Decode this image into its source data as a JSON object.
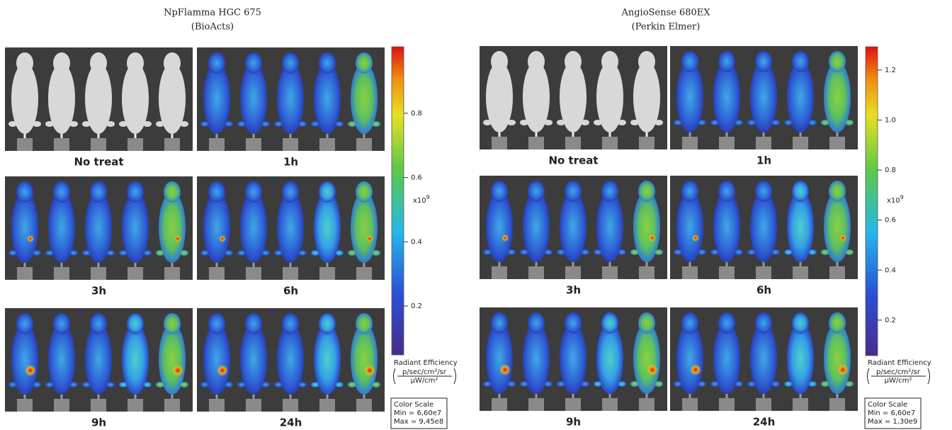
{
  "panels": [
    {
      "title": "NpFlamma HGC 675",
      "subtitle": "(BioActs)",
      "tiles": [
        "No treat",
        "1h",
        "3h",
        "6h",
        "9h",
        "24h"
      ],
      "colorbar": {
        "lim": [
          0.048,
          1.007
        ],
        "ticks": [
          0.2,
          0.4,
          0.6,
          0.8
        ],
        "multiplier": "x10",
        "exponent": "9",
        "label": "Radiant Efficiency",
        "unit_numerator": "p/sec/cm²/sr",
        "unit_denominator": "µW/cm²",
        "scale_title": "Color Scale",
        "min": "Min = 6,60e7",
        "max": "Max = 9,45e8"
      }
    },
    {
      "title": "AngioSense 680EX",
      "subtitle": "(Perkin Elmer)",
      "tiles": [
        "No treat",
        "1h",
        "3h",
        "6h",
        "9h",
        "24h"
      ],
      "colorbar": {
        "lim": [
          0.058,
          1.293
        ],
        "ticks": [
          0.2,
          0.4,
          0.6,
          0.8,
          {
            "value": 1.0,
            "label": "1.0"
          },
          1.2
        ],
        "multiplier": "x10",
        "exponent": "9",
        "label": "Radiant Efficiency",
        "unit_numerator": "p/sec/cm²/sr",
        "unit_denominator": "µW/cm²",
        "scale_title": "Color Scale",
        "min": "Min = 6,60e7",
        "max": "Max = 1,30e9"
      }
    }
  ]
}
